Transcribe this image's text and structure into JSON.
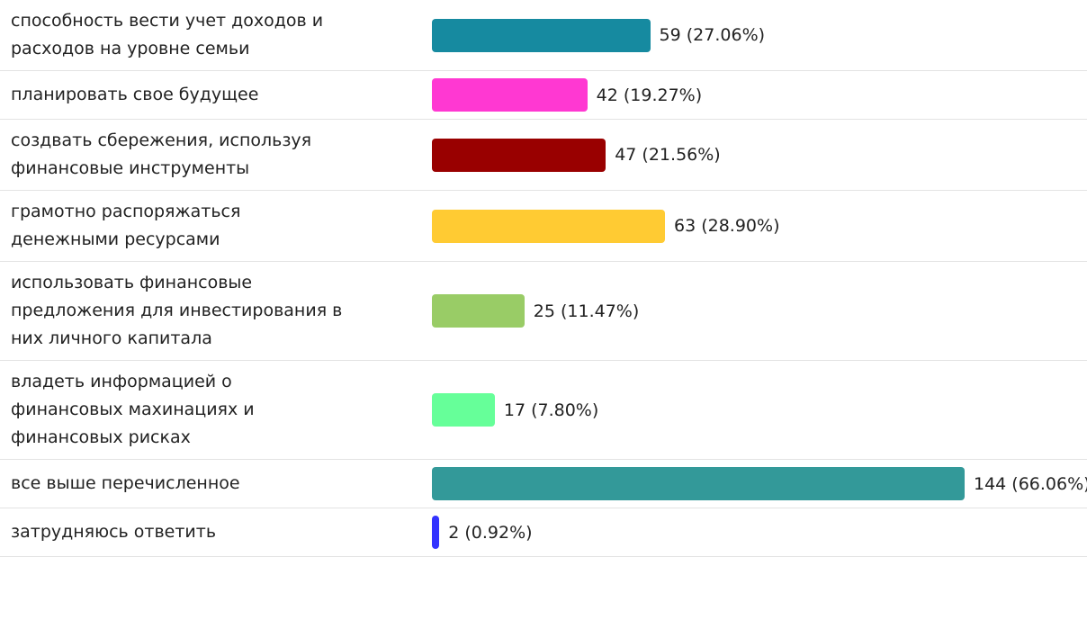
{
  "chart_data": {
    "type": "bar",
    "orientation": "horizontal",
    "categories": [
      "способность вести учет доходов и расходов на уровне семьи",
      "планировать свое будущее",
      "создвать сбережения, используя финансовые инструменты",
      "грамотно распоряжаться денежными ресурсами",
      "использовать финансовые предложения для инвестирования в них личного капитала",
      "владеть информацией о финансовых махинациях и финансовых рисках",
      "все выше перечисленное",
      "затрудняюсь ответить"
    ],
    "values": [
      59,
      42,
      47,
      63,
      25,
      17,
      144,
      2
    ],
    "value_labels": [
      "59 (27.06%)",
      "42 (19.27%)",
      "47 (21.56%)",
      "63 (28.90%)",
      "25 (11.47%)",
      "17 (7.80%)",
      "144 (66.06%)",
      "2 (0.92%)"
    ],
    "colors": [
      "#168aa0",
      "#ff38d2",
      "#990000",
      "#ffcb33",
      "#99cc66",
      "#66ff99",
      "#339999",
      "#3333ff"
    ]
  }
}
